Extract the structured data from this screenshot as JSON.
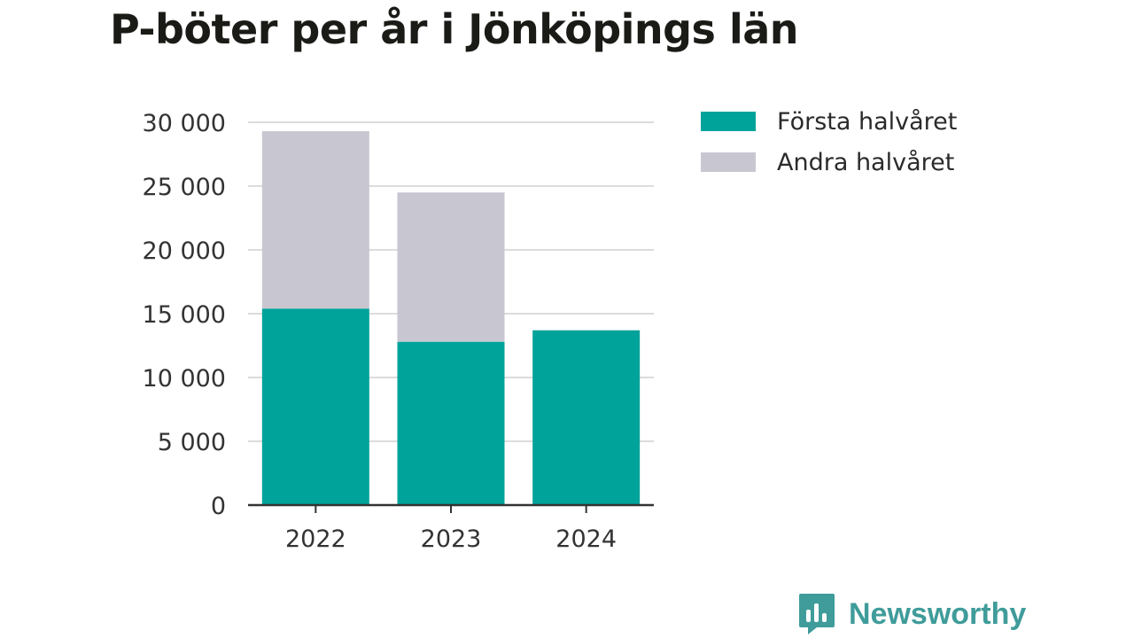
{
  "chart_data": {
    "type": "bar",
    "stacked": true,
    "title": "P-böter per år i Jönköpings län",
    "xlabel": "",
    "ylabel": "",
    "categories": [
      "2022",
      "2023",
      "2024"
    ],
    "series": [
      {
        "name": "Första halvåret",
        "color": "#00a39a",
        "values": [
          15400,
          12800,
          13700
        ]
      },
      {
        "name": "Andra halvåret",
        "color": "#c8c7d1",
        "values": [
          13900,
          11700,
          0
        ]
      }
    ],
    "ylim": [
      0,
      30000
    ],
    "yticks": [
      0,
      5000,
      10000,
      15000,
      20000,
      25000,
      30000
    ],
    "ytick_labels": [
      "0",
      "5 000",
      "10 000",
      "15 000",
      "20 000",
      "25 000",
      "30 000"
    ],
    "grid": true,
    "legend_position": "right"
  },
  "brand": {
    "name": "Newsworthy",
    "color": "#3f9c9a",
    "icon": "newsworthy-logo-icon"
  }
}
